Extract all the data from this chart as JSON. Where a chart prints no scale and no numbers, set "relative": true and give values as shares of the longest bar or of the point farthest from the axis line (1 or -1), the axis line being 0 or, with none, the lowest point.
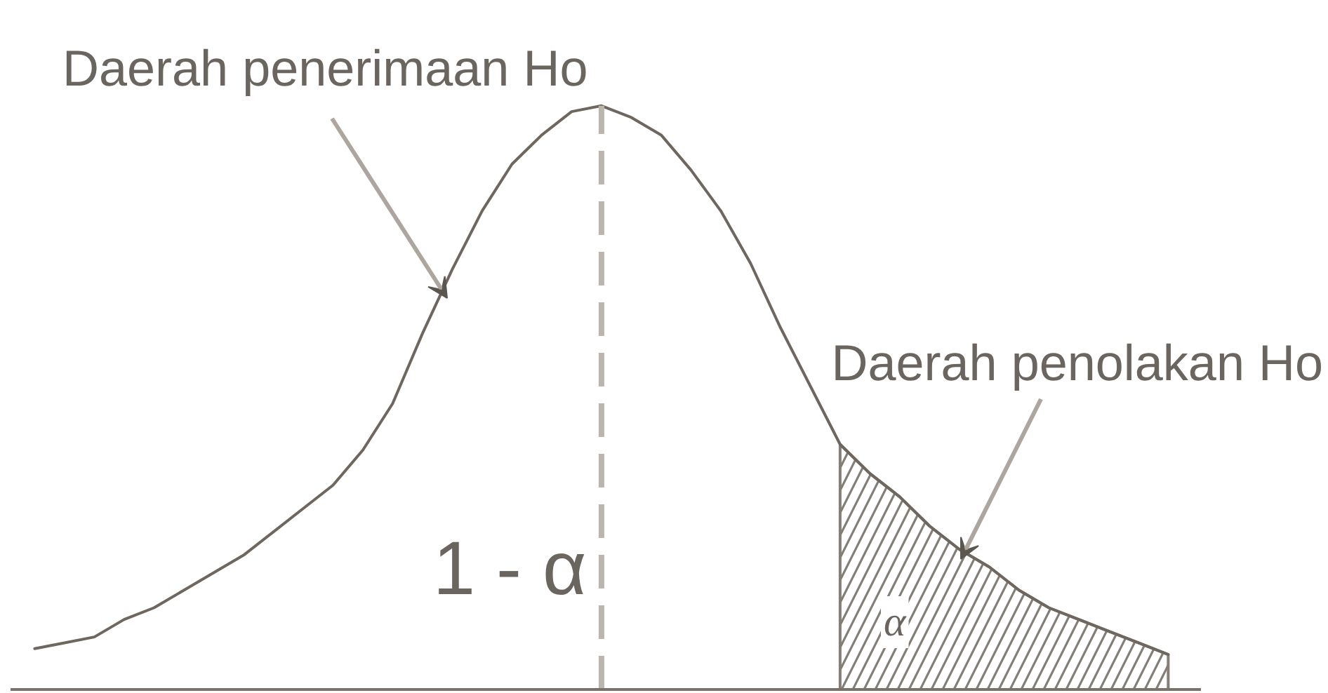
{
  "chart_data": {
    "type": "line",
    "relative": true,
    "categories": [
      null,
      null,
      null,
      null,
      null,
      null,
      null,
      null,
      null,
      null,
      null,
      null,
      null,
      null,
      null,
      null,
      null,
      null,
      null,
      null,
      null,
      null,
      null,
      null,
      null,
      null,
      null,
      null,
      null,
      null,
      null,
      null,
      null,
      null,
      null,
      null,
      null,
      null,
      null
    ],
    "series": [
      {
        "color": "#6e675f",
        "values": [
          0.07,
          0.08,
          0.09,
          0.12,
          0.14,
          0.17,
          0.2,
          0.23,
          0.27,
          0.31,
          0.35,
          0.41,
          0.49,
          0.61,
          0.72,
          0.82,
          0.9,
          0.95,
          0.99,
          1,
          0.98,
          0.95,
          0.89,
          0.82,
          0.73,
          0.62,
          0.52,
          0.42,
          0.37,
          0.33,
          0.28,
          0.24,
          0.21,
          0.17,
          0.14,
          0.12,
          0.1,
          0.08,
          0.06
        ]
      },
      {
        "type": "area",
        "color": "#857e76",
        "values": [
          null,
          null,
          null,
          null,
          null,
          null,
          null,
          null,
          null,
          null,
          null,
          null,
          null,
          null,
          null,
          null,
          null,
          null,
          null,
          null,
          null,
          null,
          null,
          null,
          null,
          null,
          null,
          0.42,
          0.37,
          0.33,
          0.28,
          0.24,
          0.21,
          0.17,
          0.14,
          0.12,
          0.1,
          0.08,
          0.06
        ]
      }
    ],
    "annotations": [
      "Daerah penerimaan Ho",
      "Daerah penolakan Ho",
      "1 - α",
      "α"
    ]
  }
}
